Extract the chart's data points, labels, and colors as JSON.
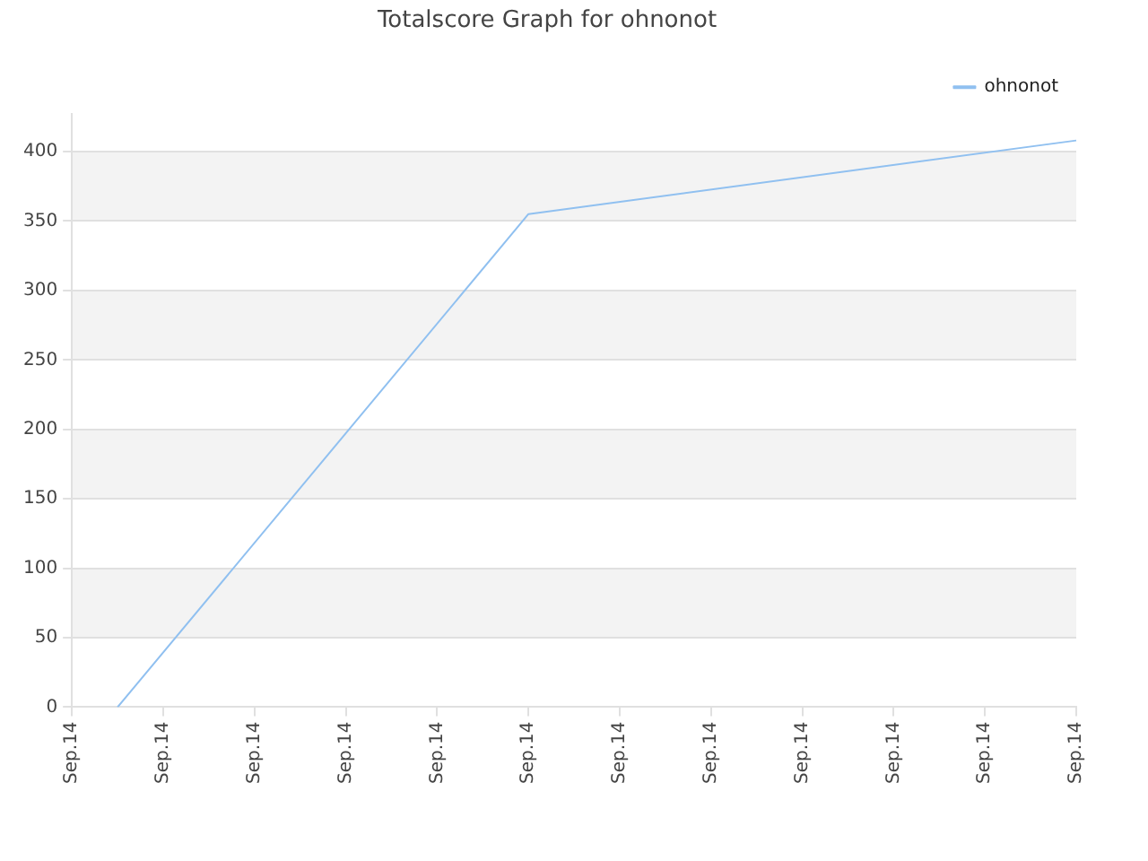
{
  "chart_data": {
    "type": "line",
    "title": "Totalscore Graph for ohnonot",
    "categories": [
      "Sep.14",
      null,
      "Sep.14",
      null,
      "Sep.14",
      null,
      "Sep.14",
      null,
      "Sep.14",
      null,
      "Sep.14",
      null,
      "Sep.14",
      null,
      "Sep.14",
      null,
      "Sep.14",
      null,
      "Sep.14",
      null,
      "Sep.14",
      null,
      "Sep.14"
    ],
    "series": [
      {
        "name": "ohnonot",
        "color": "#90c0f0",
        "values": [
          null,
          0,
          null,
          null,
          null,
          null,
          null,
          null,
          null,
          null,
          355,
          null,
          null,
          null,
          null,
          null,
          null,
          null,
          null,
          null,
          null,
          null,
          408
        ]
      }
    ],
    "ylim": [
      0,
      427
    ],
    "yticks": [
      0,
      50,
      100,
      150,
      200,
      250,
      300,
      350,
      400
    ],
    "grid": "y",
    "legend": "top right",
    "marker": "none",
    "line_style": "solid"
  }
}
